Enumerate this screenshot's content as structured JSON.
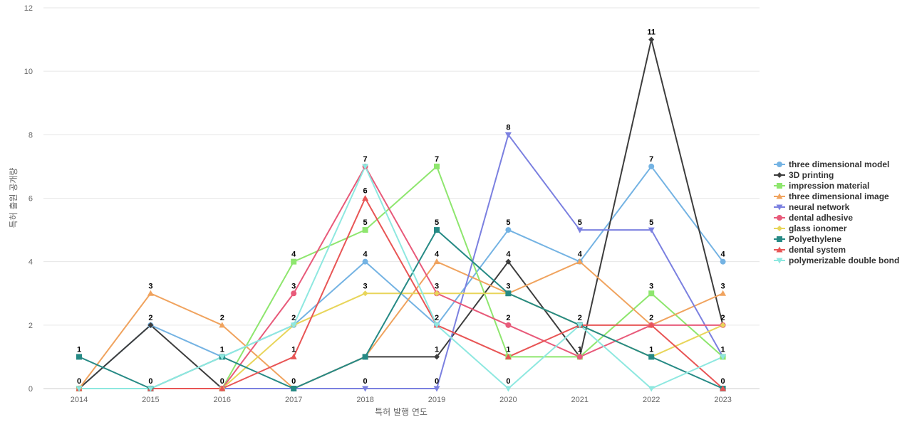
{
  "chart_data": {
    "type": "line",
    "xlabel": "특허 발행 연도",
    "ylabel": "특허 출원 공개량",
    "ylim": [
      0,
      12
    ],
    "yticks": [
      0,
      2,
      4,
      6,
      8,
      10,
      12
    ],
    "grid": true,
    "legend_position": "right",
    "x": [
      "2014",
      "2015",
      "2016",
      "2017",
      "2018",
      "2019",
      "2020",
      "2021",
      "2022",
      "2023"
    ],
    "series": [
      {
        "name": "three dimensional model",
        "color": "#74b3e3",
        "marker": "circle",
        "values": [
          0,
          2,
          1,
          2,
          4,
          2,
          5,
          4,
          7,
          4
        ],
        "labeled": [
          false,
          false,
          false,
          false,
          true,
          false,
          true,
          true,
          true,
          true
        ]
      },
      {
        "name": "3D printing",
        "color": "#3d3d3d",
        "marker": "diamond",
        "values": [
          0,
          2,
          0,
          0,
          1,
          1,
          4,
          1,
          11,
          2
        ],
        "labeled": [
          false,
          true,
          false,
          false,
          false,
          true,
          true,
          true,
          true,
          false
        ]
      },
      {
        "name": "impression material",
        "color": "#8ee66e",
        "marker": "square",
        "values": [
          0,
          0,
          0,
          4,
          5,
          7,
          1,
          1,
          3,
          1
        ],
        "labeled": [
          false,
          false,
          false,
          true,
          true,
          true,
          false,
          false,
          true,
          true
        ]
      },
      {
        "name": "three dimensional image",
        "color": "#f0a35e",
        "marker": "triangle-up",
        "values": [
          0,
          3,
          2,
          0,
          1,
          4,
          3,
          4,
          2,
          3
        ],
        "labeled": [
          false,
          true,
          true,
          false,
          false,
          true,
          false,
          false,
          false,
          true
        ]
      },
      {
        "name": "neural network",
        "color": "#7b80e0",
        "marker": "triangle-down",
        "values": [
          0,
          0,
          0,
          0,
          0,
          0,
          8,
          5,
          5,
          1
        ],
        "labeled": [
          false,
          false,
          false,
          false,
          true,
          true,
          true,
          true,
          true,
          false
        ]
      },
      {
        "name": "dental adhesive",
        "color": "#e85a7a",
        "marker": "circle",
        "values": [
          0,
          0,
          0,
          3,
          7,
          3,
          2,
          1,
          2,
          2
        ],
        "labeled": [
          false,
          false,
          false,
          true,
          true,
          false,
          true,
          false,
          false,
          false
        ]
      },
      {
        "name": "glass ionomer",
        "color": "#e8d55a",
        "marker": "diamond",
        "values": [
          0,
          0,
          0,
          2,
          3,
          3,
          3,
          2,
          1,
          2
        ],
        "labeled": [
          false,
          false,
          false,
          true,
          true,
          true,
          false,
          false,
          false,
          true
        ]
      },
      {
        "name": "Polyethylene",
        "color": "#268a85",
        "marker": "square",
        "values": [
          1,
          0,
          1,
          0,
          1,
          5,
          3,
          2,
          1,
          0
        ],
        "labeled": [
          true,
          true,
          true,
          true,
          false,
          true,
          true,
          false,
          true,
          true
        ]
      },
      {
        "name": "dental system",
        "color": "#e85555",
        "marker": "triangle-up",
        "values": [
          0,
          0,
          0,
          1,
          6,
          2,
          1,
          2,
          2,
          0
        ],
        "labeled": [
          true,
          false,
          true,
          true,
          true,
          true,
          true,
          false,
          true,
          false
        ]
      },
      {
        "name": "polymerizable double bond",
        "color": "#8ee8e0",
        "marker": "triangle-down",
        "values": [
          0,
          0,
          1,
          2,
          7,
          2,
          0,
          2,
          0,
          1
        ],
        "labeled": [
          false,
          false,
          false,
          false,
          false,
          false,
          true,
          true,
          false,
          false
        ]
      }
    ]
  }
}
